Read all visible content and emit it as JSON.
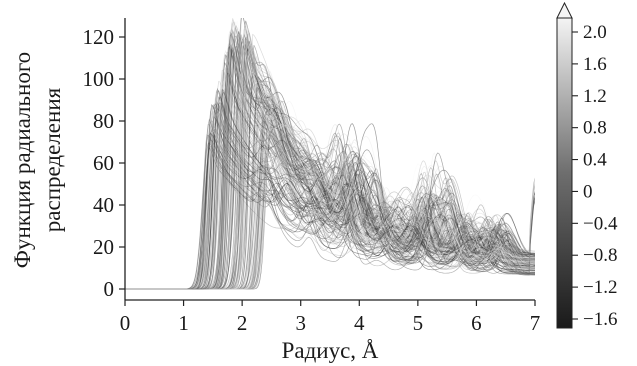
{
  "chart_data": {
    "type": "line",
    "title": "",
    "xlabel": "Радиус, Å",
    "ylabel_lines": [
      "Функция радиального",
      "распределения"
    ],
    "xlim": [
      0,
      7
    ],
    "ylim": [
      -5,
      130
    ],
    "x_ticks": [
      "0",
      "1",
      "2",
      "3",
      "4",
      "5",
      "6",
      "7"
    ],
    "y_ticks": [
      "0",
      "20",
      "40",
      "60",
      "80",
      "100",
      "120"
    ],
    "grid": false,
    "line_color_map": "grayscale",
    "series_count_approx": 200,
    "envelope_peaks": [
      {
        "x": 1.47,
        "y": 70
      },
      {
        "x": 1.7,
        "y": 108
      },
      {
        "x": 1.93,
        "y": 127
      },
      {
        "x": 2.42,
        "y": 114
      },
      {
        "x": 3.98,
        "y": 59
      },
      {
        "x": 5.3,
        "y": 49
      },
      {
        "x": 6.3,
        "y": 30
      },
      {
        "x": 7.0,
        "y": 53
      }
    ],
    "colorbar": {
      "range": [
        -1.6,
        2.0
      ],
      "ticks": [
        "2.0",
        "1.6",
        "1.2",
        "0.8",
        "0.4",
        "0",
        "−0.4",
        "−0.8",
        "−1.2",
        "−1.6"
      ],
      "extend": "max",
      "color_min": "#1a1a1a",
      "color_max": "#f4f4f4"
    }
  }
}
